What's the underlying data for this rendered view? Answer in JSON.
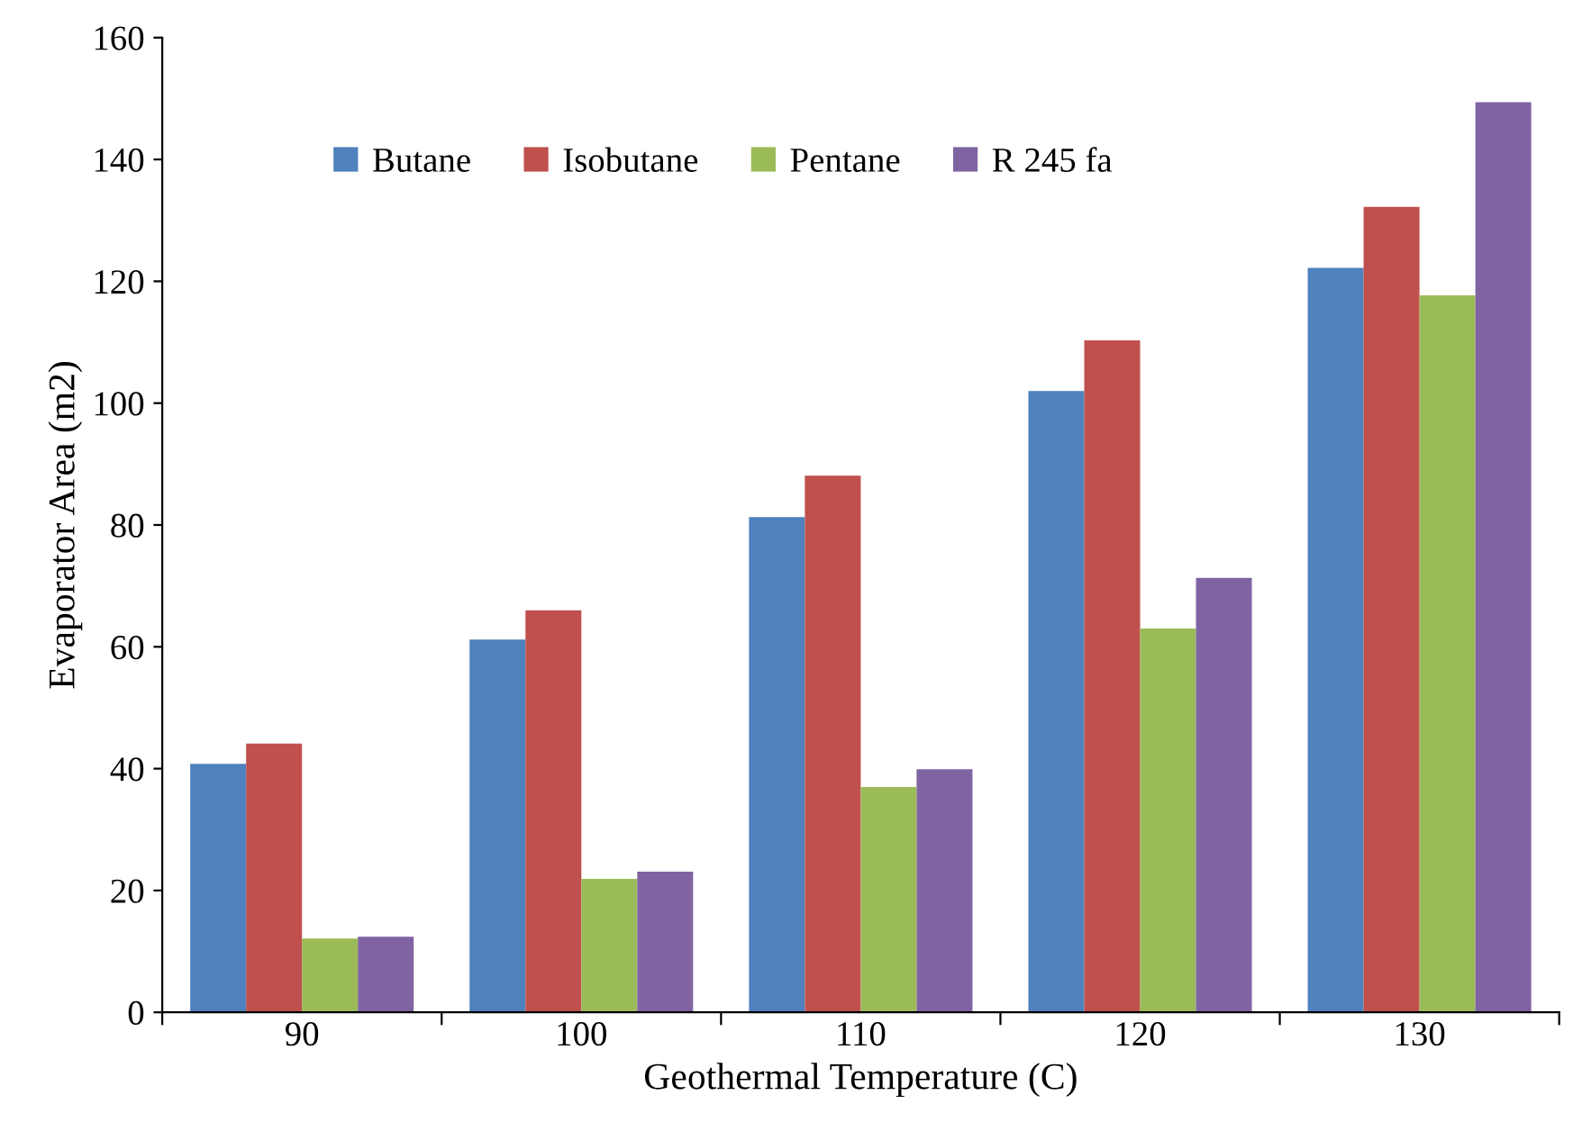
{
  "chart_data": {
    "type": "bar",
    "xlabel": "Geothermal Temperature (C)",
    "ylabel": "Evaporator Area (m2)",
    "categories": [
      "90",
      "100",
      "110",
      "120",
      "130"
    ],
    "series": [
      {
        "name": "Butane",
        "color": "#4f81bd",
        "values": [
          40.8,
          61.2,
          81.3,
          102.0,
          122.2
        ]
      },
      {
        "name": "Isobutane",
        "color": "#c0504d",
        "values": [
          44.1,
          66.0,
          88.1,
          110.3,
          132.2
        ]
      },
      {
        "name": "Pentane",
        "color": "#9bbb59",
        "values": [
          12.1,
          21.9,
          37.0,
          63.0,
          117.7
        ]
      },
      {
        "name": "R 245 fa",
        "color": "#8064a2",
        "values": [
          12.4,
          23.1,
          39.9,
          71.3,
          149.4
        ]
      }
    ],
    "ylim": [
      0,
      160
    ],
    "yticks": [
      0,
      20,
      40,
      60,
      80,
      100,
      120,
      140,
      160
    ],
    "grid": false,
    "legend": "top left"
  }
}
